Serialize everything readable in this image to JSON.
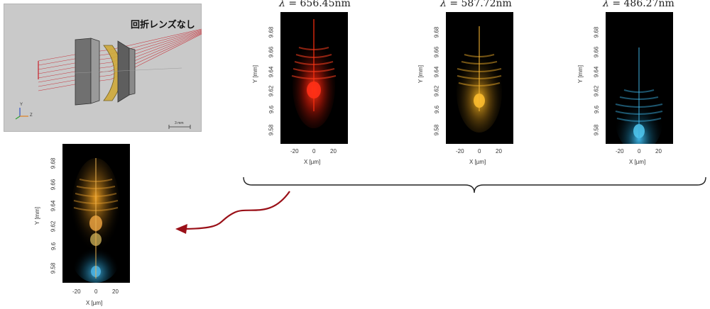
{
  "lens_panel": {
    "title": "回折レンズなし",
    "axis_y": "Y",
    "axis_z": "Z",
    "scale_bar": "3 mm"
  },
  "lambda_symbol": "λ",
  "spectra": [
    {
      "value": "= 656.45",
      "unit": "nm",
      "color": "#e03018"
    },
    {
      "value": "= 587.72",
      "unit": "nm",
      "color": "#e8a020"
    },
    {
      "value": "= 486.27",
      "unit": "nm",
      "color": "#30a8d8"
    }
  ],
  "axes": {
    "ylabel": "Y [mm]",
    "xlabel": "X [µm]",
    "yticks": [
      "9.68",
      "9.66",
      "9.64",
      "9.62",
      "9.6",
      "9.58"
    ],
    "xticks": [
      "-20",
      "0",
      "20"
    ]
  }
}
